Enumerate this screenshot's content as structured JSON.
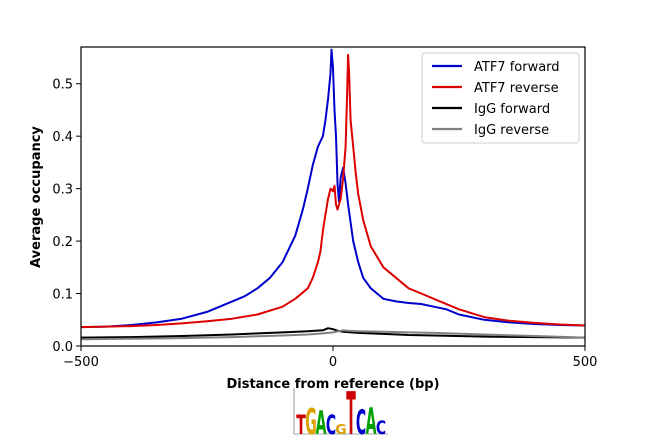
{
  "chart_data": {
    "type": "line",
    "title": "",
    "xlabel": "Distance from reference (bp)",
    "ylabel": "Average occupancy",
    "xlim": [
      -500,
      500
    ],
    "ylim": [
      0,
      0.57
    ],
    "xticks": [
      -500,
      0,
      500
    ],
    "xtick_labels": [
      "−500",
      "0",
      "500"
    ],
    "yticks": [
      0.0,
      0.1,
      0.2,
      0.3,
      0.4,
      0.5
    ],
    "ytick_labels": [
      "0.0",
      "0.1",
      "0.2",
      "0.3",
      "0.4",
      "0.5"
    ],
    "grid": false,
    "legend_position": "top-right",
    "series": [
      {
        "name": "ATF7 forward",
        "color": "#0000cc",
        "points": [
          [
            -500,
            0.036
          ],
          [
            -450,
            0.037
          ],
          [
            -400,
            0.04
          ],
          [
            -350,
            0.045
          ],
          [
            -300,
            0.052
          ],
          [
            -250,
            0.065
          ],
          [
            -200,
            0.085
          ],
          [
            -175,
            0.095
          ],
          [
            -150,
            0.11
          ],
          [
            -125,
            0.13
          ],
          [
            -100,
            0.16
          ],
          [
            -75,
            0.21
          ],
          [
            -60,
            0.26
          ],
          [
            -50,
            0.3
          ],
          [
            -40,
            0.345
          ],
          [
            -30,
            0.38
          ],
          [
            -20,
            0.4
          ],
          [
            -15,
            0.43
          ],
          [
            -10,
            0.47
          ],
          [
            -5,
            0.52
          ],
          [
            -3,
            0.565
          ],
          [
            0,
            0.53
          ],
          [
            3,
            0.45
          ],
          [
            6,
            0.4
          ],
          [
            9,
            0.31
          ],
          [
            12,
            0.275
          ],
          [
            15,
            0.32
          ],
          [
            20,
            0.34
          ],
          [
            25,
            0.31
          ],
          [
            30,
            0.27
          ],
          [
            40,
            0.2
          ],
          [
            50,
            0.16
          ],
          [
            60,
            0.13
          ],
          [
            75,
            0.11
          ],
          [
            100,
            0.09
          ],
          [
            125,
            0.085
          ],
          [
            150,
            0.082
          ],
          [
            175,
            0.08
          ],
          [
            200,
            0.075
          ],
          [
            225,
            0.07
          ],
          [
            250,
            0.06
          ],
          [
            300,
            0.05
          ],
          [
            350,
            0.045
          ],
          [
            400,
            0.042
          ],
          [
            450,
            0.04
          ],
          [
            500,
            0.039
          ]
        ]
      },
      {
        "name": "ATF7 reverse",
        "color": "#dd0000",
        "points": [
          [
            -500,
            0.036
          ],
          [
            -450,
            0.037
          ],
          [
            -400,
            0.038
          ],
          [
            -350,
            0.04
          ],
          [
            -300,
            0.043
          ],
          [
            -250,
            0.047
          ],
          [
            -200,
            0.052
          ],
          [
            -150,
            0.06
          ],
          [
            -100,
            0.075
          ],
          [
            -75,
            0.09
          ],
          [
            -50,
            0.11
          ],
          [
            -40,
            0.13
          ],
          [
            -30,
            0.16
          ],
          [
            -25,
            0.18
          ],
          [
            -20,
            0.22
          ],
          [
            -15,
            0.25
          ],
          [
            -10,
            0.28
          ],
          [
            -5,
            0.3
          ],
          [
            0,
            0.295
          ],
          [
            3,
            0.305
          ],
          [
            6,
            0.27
          ],
          [
            9,
            0.26
          ],
          [
            12,
            0.27
          ],
          [
            15,
            0.28
          ],
          [
            20,
            0.32
          ],
          [
            25,
            0.38
          ],
          [
            28,
            0.48
          ],
          [
            30,
            0.555
          ],
          [
            32,
            0.52
          ],
          [
            35,
            0.43
          ],
          [
            40,
            0.38
          ],
          [
            45,
            0.33
          ],
          [
            50,
            0.29
          ],
          [
            60,
            0.24
          ],
          [
            75,
            0.19
          ],
          [
            100,
            0.15
          ],
          [
            125,
            0.13
          ],
          [
            150,
            0.11
          ],
          [
            175,
            0.1
          ],
          [
            200,
            0.09
          ],
          [
            250,
            0.07
          ],
          [
            300,
            0.055
          ],
          [
            350,
            0.048
          ],
          [
            400,
            0.044
          ],
          [
            450,
            0.041
          ],
          [
            500,
            0.039
          ]
        ]
      },
      {
        "name": "IgG forward",
        "color": "#000000",
        "points": [
          [
            -500,
            0.016
          ],
          [
            -400,
            0.017
          ],
          [
            -300,
            0.019
          ],
          [
            -200,
            0.022
          ],
          [
            -150,
            0.024
          ],
          [
            -100,
            0.026
          ],
          [
            -50,
            0.028
          ],
          [
            -20,
            0.03
          ],
          [
            -10,
            0.034
          ],
          [
            0,
            0.032
          ],
          [
            10,
            0.029
          ],
          [
            20,
            0.027
          ],
          [
            50,
            0.025
          ],
          [
            100,
            0.023
          ],
          [
            150,
            0.021
          ],
          [
            200,
            0.02
          ],
          [
            300,
            0.018
          ],
          [
            400,
            0.017
          ],
          [
            500,
            0.016
          ]
        ]
      },
      {
        "name": "IgG reverse",
        "color": "#808080",
        "points": [
          [
            -500,
            0.013
          ],
          [
            -400,
            0.014
          ],
          [
            -300,
            0.015
          ],
          [
            -200,
            0.017
          ],
          [
            -100,
            0.02
          ],
          [
            -50,
            0.022
          ],
          [
            -20,
            0.024
          ],
          [
            0,
            0.026
          ],
          [
            10,
            0.028
          ],
          [
            20,
            0.03
          ],
          [
            30,
            0.029
          ],
          [
            50,
            0.028
          ],
          [
            100,
            0.027
          ],
          [
            150,
            0.026
          ],
          [
            200,
            0.025
          ],
          [
            300,
            0.022
          ],
          [
            400,
            0.019
          ],
          [
            500,
            0.016
          ]
        ]
      }
    ]
  },
  "motif_logo": {
    "letters": [
      {
        "char": "T",
        "color": "#cc0000",
        "height": 0.45
      },
      {
        "char": "G",
        "color": "#d9a000",
        "height": 0.6
      },
      {
        "char": "A",
        "color": "#00a000",
        "height": 0.55
      },
      {
        "char": "C",
        "color": "#0000cc",
        "height": 0.45
      },
      {
        "char": "G",
        "color": "#d9a000",
        "height": 0.22
      },
      {
        "char": "T",
        "color": "#cc0000",
        "height": 1.0
      },
      {
        "char": "C",
        "color": "#0000cc",
        "height": 0.58
      },
      {
        "char": "A",
        "color": "#00a000",
        "height": 0.62
      },
      {
        "char": "C",
        "color": "#0000cc",
        "height": 0.32
      }
    ]
  }
}
